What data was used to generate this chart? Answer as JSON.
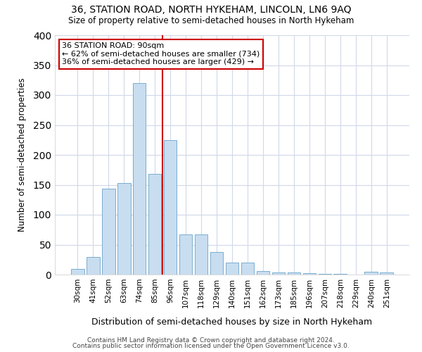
{
  "title1": "36, STATION ROAD, NORTH HYKEHAM, LINCOLN, LN6 9AQ",
  "title2": "Size of property relative to semi-detached houses in North Hykeham",
  "xlabel": "Distribution of semi-detached houses by size in North Hykeham",
  "ylabel": "Number of semi-detached properties",
  "categories": [
    "30sqm",
    "41sqm",
    "52sqm",
    "63sqm",
    "74sqm",
    "85sqm",
    "96sqm",
    "107sqm",
    "118sqm",
    "129sqm",
    "140sqm",
    "151sqm",
    "162sqm",
    "173sqm",
    "185sqm",
    "196sqm",
    "207sqm",
    "218sqm",
    "229sqm",
    "240sqm",
    "251sqm"
  ],
  "values": [
    10,
    30,
    143,
    153,
    320,
    168,
    225,
    67,
    67,
    38,
    20,
    20,
    6,
    3,
    3,
    2,
    1,
    1,
    0,
    5,
    3
  ],
  "bar_color": "#c8ddf0",
  "bar_edge_color": "#7aaed0",
  "vline_color": "#cc0000",
  "annotation_text": "36 STATION ROAD: 90sqm\n← 62% of semi-detached houses are smaller (734)\n36% of semi-detached houses are larger (429) →",
  "annotation_box_color": "#ffffff",
  "annotation_box_edge": "#cc0000",
  "ylim": [
    0,
    400
  ],
  "yticks": [
    0,
    50,
    100,
    150,
    200,
    250,
    300,
    350,
    400
  ],
  "footer1": "Contains HM Land Registry data © Crown copyright and database right 2024.",
  "footer2": "Contains public sector information licensed under the Open Government Licence v3.0.",
  "bg_color": "#ffffff",
  "plot_bg_color": "#ffffff",
  "grid_color": "#d0d8e8"
}
